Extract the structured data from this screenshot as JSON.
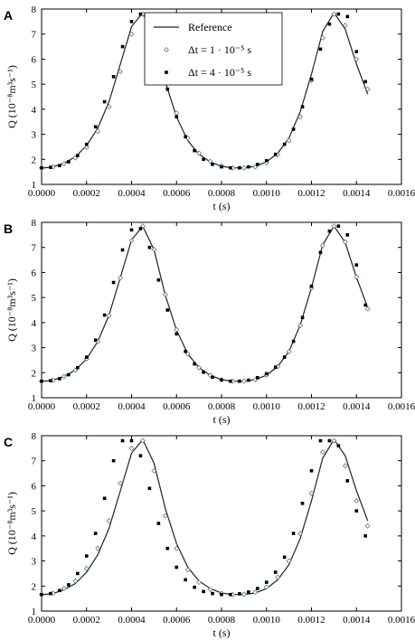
{
  "chart_data": [
    {
      "panel": "A",
      "type": "scatter",
      "xlabel": "t (s)",
      "ylabel": "Q (10⁻⁸m³s⁻¹)",
      "xlim": [
        0,
        0.0016
      ],
      "ylim": [
        1,
        8
      ],
      "xticks": [
        "0.0000",
        "0.0002",
        "0.0004",
        "0.0006",
        "0.0008",
        "0.0010",
        "0.0012",
        "0.0014",
        "0.0016"
      ],
      "yticks": [
        "1",
        "2",
        "3",
        "4",
        "5",
        "6",
        "7",
        "8"
      ],
      "legend": {
        "placement": "top-center",
        "entries": [
          "Reference",
          "Δt = 1 · 10⁻⁵ s",
          "Δt = 4 · 10⁻⁵ s"
        ]
      },
      "series": [
        {
          "name": "Reference",
          "style": "line",
          "x": [
            0,
            5e-05,
            0.0001,
            0.00015,
            0.0002,
            0.00025,
            0.0003,
            0.00035,
            0.0004,
            0.00045,
            0.0005,
            0.00055,
            0.0006,
            0.00065,
            0.0007,
            0.00075,
            0.0008,
            0.00085,
            0.0009,
            0.00095,
            0.001,
            0.00105,
            0.0011,
            0.00115,
            0.0012,
            0.00125,
            0.0013,
            0.00135,
            0.0014,
            0.00145
          ],
          "y": [
            1.65,
            1.7,
            1.85,
            2.1,
            2.55,
            3.25,
            4.3,
            5.8,
            7.3,
            7.85,
            6.9,
            5.1,
            3.7,
            2.75,
            2.2,
            1.9,
            1.72,
            1.66,
            1.66,
            1.72,
            1.9,
            2.25,
            2.85,
            3.9,
            5.4,
            7.1,
            7.85,
            7.2,
            5.8,
            4.6
          ]
        },
        {
          "name": "Δt = 1 · 10⁻⁵ s",
          "style": "open-diamond",
          "x": [
            0,
            5e-05,
            0.0001,
            0.00015,
            0.0002,
            0.00025,
            0.0003,
            0.00035,
            0.0004,
            0.00045,
            0.0005,
            0.00055,
            0.0006,
            0.00065,
            0.0007,
            0.00075,
            0.0008,
            0.00085,
            0.0009,
            0.00095,
            0.001,
            0.00105,
            0.0011,
            0.00115,
            0.0012,
            0.00125,
            0.0013,
            0.00135,
            0.0014,
            0.00145
          ],
          "y": [
            1.66,
            1.7,
            1.83,
            2.06,
            2.48,
            3.12,
            4.1,
            5.5,
            7.0,
            7.8,
            7.1,
            5.3,
            3.85,
            2.85,
            2.25,
            1.92,
            1.74,
            1.66,
            1.66,
            1.7,
            1.86,
            2.18,
            2.75,
            3.7,
            5.15,
            6.85,
            7.8,
            7.35,
            6.0,
            4.8
          ]
        },
        {
          "name": "Δt = 4 · 10⁻⁵ s",
          "style": "filled-square",
          "x": [
            0,
            4e-05,
            8e-05,
            0.00012,
            0.00016,
            0.0002,
            0.00024,
            0.00028,
            0.00032,
            0.00036,
            0.0004,
            0.00044,
            0.00048,
            0.00052,
            0.00056,
            0.0006,
            0.00064,
            0.00068,
            0.00072,
            0.00076,
            0.0008,
            0.00084,
            0.00088,
            0.00092,
            0.00096,
            0.001,
            0.00104,
            0.00108,
            0.00112,
            0.00116,
            0.0012,
            0.00124,
            0.00128,
            0.00132,
            0.00136,
            0.0014,
            0.00144
          ],
          "y": [
            1.66,
            1.68,
            1.75,
            1.9,
            2.15,
            2.6,
            3.3,
            4.3,
            5.3,
            6.5,
            7.5,
            7.8,
            7.5,
            6.3,
            4.8,
            3.7,
            2.9,
            2.35,
            2.0,
            1.8,
            1.7,
            1.66,
            1.66,
            1.7,
            1.8,
            1.95,
            2.2,
            2.6,
            3.2,
            4.1,
            5.2,
            6.4,
            7.4,
            7.8,
            7.7,
            6.3,
            5.1
          ]
        }
      ]
    },
    {
      "panel": "B",
      "type": "scatter",
      "xlabel": "t (s)",
      "ylabel": "Q (10⁻⁸m³s⁻¹)",
      "xlim": [
        0,
        0.0016
      ],
      "ylim": [
        1,
        8
      ],
      "xticks": [
        "0.0000",
        "0.0002",
        "0.0004",
        "0.0006",
        "0.0008",
        "0.0010",
        "0.0012",
        "0.0014",
        "0.0016"
      ],
      "yticks": [
        "1",
        "2",
        "3",
        "4",
        "5",
        "6",
        "7",
        "8"
      ],
      "series": [
        {
          "name": "Reference",
          "style": "line",
          "x": [
            0,
            5e-05,
            0.0001,
            0.00015,
            0.0002,
            0.00025,
            0.0003,
            0.00035,
            0.0004,
            0.00045,
            0.0005,
            0.00055,
            0.0006,
            0.00065,
            0.0007,
            0.00075,
            0.0008,
            0.00085,
            0.0009,
            0.00095,
            0.001,
            0.00105,
            0.0011,
            0.00115,
            0.0012,
            0.00125,
            0.0013,
            0.00135,
            0.0014,
            0.00145
          ],
          "y": [
            1.65,
            1.7,
            1.85,
            2.1,
            2.55,
            3.25,
            4.3,
            5.8,
            7.3,
            7.85,
            6.9,
            5.1,
            3.7,
            2.75,
            2.2,
            1.9,
            1.72,
            1.66,
            1.66,
            1.72,
            1.9,
            2.25,
            2.85,
            3.9,
            5.4,
            7.1,
            7.85,
            7.2,
            5.8,
            4.6
          ]
        },
        {
          "name": "Δt = 1 · 10⁻⁵ s",
          "style": "open-diamond",
          "x": [
            0,
            5e-05,
            0.0001,
            0.00015,
            0.0002,
            0.00025,
            0.0003,
            0.00035,
            0.0004,
            0.00045,
            0.0005,
            0.00055,
            0.0006,
            0.00065,
            0.0007,
            0.00075,
            0.0008,
            0.00085,
            0.0009,
            0.00095,
            0.001,
            0.00105,
            0.0011,
            0.00115,
            0.0012,
            0.00125,
            0.0013,
            0.00135,
            0.0014,
            0.00145
          ],
          "y": [
            1.66,
            1.7,
            1.85,
            2.1,
            2.55,
            3.24,
            4.28,
            5.78,
            7.28,
            7.85,
            6.92,
            5.12,
            3.72,
            2.76,
            2.2,
            1.9,
            1.72,
            1.66,
            1.66,
            1.72,
            1.9,
            2.25,
            2.84,
            3.88,
            5.38,
            7.08,
            7.85,
            7.22,
            5.82,
            4.55
          ]
        },
        {
          "name": "Δt = 4 · 10⁻⁵ s",
          "style": "filled-square",
          "x": [
            0,
            4e-05,
            8e-05,
            0.00012,
            0.00016,
            0.0002,
            0.00024,
            0.00028,
            0.00032,
            0.00036,
            0.0004,
            0.00044,
            0.00048,
            0.00052,
            0.00056,
            0.0006,
            0.00064,
            0.00068,
            0.00072,
            0.00076,
            0.0008,
            0.00084,
            0.00088,
            0.00092,
            0.00096,
            0.001,
            0.00104,
            0.00108,
            0.00112,
            0.00116,
            0.0012,
            0.00124,
            0.00128,
            0.00132,
            0.00136,
            0.0014,
            0.00144
          ],
          "y": [
            1.66,
            1.68,
            1.76,
            1.92,
            2.2,
            2.62,
            3.3,
            4.3,
            5.6,
            6.9,
            7.7,
            7.75,
            7.0,
            5.7,
            4.5,
            3.55,
            2.85,
            2.35,
            2.02,
            1.82,
            1.71,
            1.66,
            1.66,
            1.7,
            1.8,
            1.96,
            2.22,
            2.62,
            3.25,
            4.2,
            5.45,
            6.8,
            7.65,
            7.85,
            7.5,
            6.3,
            4.7
          ]
        }
      ]
    },
    {
      "panel": "C",
      "type": "scatter",
      "xlabel": "t (s)",
      "ylabel": "Q (10⁻⁸m³s⁻¹)",
      "xlim": [
        0,
        0.0016
      ],
      "ylim": [
        1,
        8
      ],
      "xticks": [
        "0.0000",
        "0.0002",
        "0.0004",
        "0.0006",
        "0.0008",
        "0.0010",
        "0.0012",
        "0.0014",
        "0.0016"
      ],
      "yticks": [
        "1",
        "2",
        "3",
        "4",
        "5",
        "6",
        "7",
        "8"
      ],
      "series": [
        {
          "name": "Reference",
          "style": "line",
          "x": [
            0,
            5e-05,
            0.0001,
            0.00015,
            0.0002,
            0.00025,
            0.0003,
            0.00035,
            0.0004,
            0.00045,
            0.0005,
            0.00055,
            0.0006,
            0.00065,
            0.0007,
            0.00075,
            0.0008,
            0.00085,
            0.0009,
            0.00095,
            0.001,
            0.00105,
            0.0011,
            0.00115,
            0.0012,
            0.00125,
            0.0013,
            0.00135,
            0.0014,
            0.00145
          ],
          "y": [
            1.65,
            1.7,
            1.85,
            2.1,
            2.55,
            3.25,
            4.3,
            5.8,
            7.3,
            7.85,
            6.9,
            5.1,
            3.7,
            2.75,
            2.2,
            1.9,
            1.72,
            1.66,
            1.66,
            1.72,
            1.9,
            2.25,
            2.85,
            3.9,
            5.4,
            7.1,
            7.85,
            7.2,
            5.8,
            4.6
          ]
        },
        {
          "name": "Δt = 1 · 10⁻⁵ s",
          "style": "open-diamond",
          "x": [
            0,
            5e-05,
            0.0001,
            0.00015,
            0.0002,
            0.00025,
            0.0003,
            0.00035,
            0.0004,
            0.00045,
            0.0005,
            0.00055,
            0.0006,
            0.00065,
            0.0007,
            0.00075,
            0.0008,
            0.00085,
            0.0009,
            0.00095,
            0.001,
            0.00105,
            0.0011,
            0.00115,
            0.0012,
            0.00125,
            0.0013,
            0.00135,
            0.0014,
            0.00145
          ],
          "y": [
            1.66,
            1.72,
            1.9,
            2.2,
            2.7,
            3.5,
            4.6,
            6.1,
            7.5,
            7.8,
            6.6,
            4.8,
            3.5,
            2.65,
            2.15,
            1.86,
            1.7,
            1.66,
            1.67,
            1.75,
            1.96,
            2.35,
            3.0,
            4.1,
            5.7,
            7.35,
            7.8,
            6.8,
            5.4,
            4.4
          ]
        },
        {
          "name": "Δt = 4 · 10⁻⁵ s",
          "style": "filled-square",
          "x": [
            0,
            4e-05,
            8e-05,
            0.00012,
            0.00016,
            0.0002,
            0.00024,
            0.00028,
            0.00032,
            0.00036,
            0.0004,
            0.00044,
            0.00048,
            0.00052,
            0.00056,
            0.0006,
            0.00064,
            0.00068,
            0.00072,
            0.00076,
            0.0008,
            0.00084,
            0.00088,
            0.00092,
            0.00096,
            0.001,
            0.00104,
            0.00108,
            0.00112,
            0.00116,
            0.0012,
            0.00124,
            0.00128,
            0.00132,
            0.00136,
            0.0014,
            0.00144
          ],
          "y": [
            1.66,
            1.7,
            1.82,
            2.05,
            2.5,
            3.2,
            4.1,
            5.5,
            7.0,
            7.8,
            7.8,
            7.2,
            5.9,
            4.5,
            3.5,
            2.75,
            2.25,
            1.95,
            1.78,
            1.7,
            1.66,
            1.66,
            1.69,
            1.76,
            1.9,
            2.15,
            2.55,
            3.15,
            4.1,
            5.3,
            6.6,
            7.8,
            7.8,
            7.6,
            6.2,
            5.0,
            4.0
          ]
        }
      ]
    }
  ]
}
